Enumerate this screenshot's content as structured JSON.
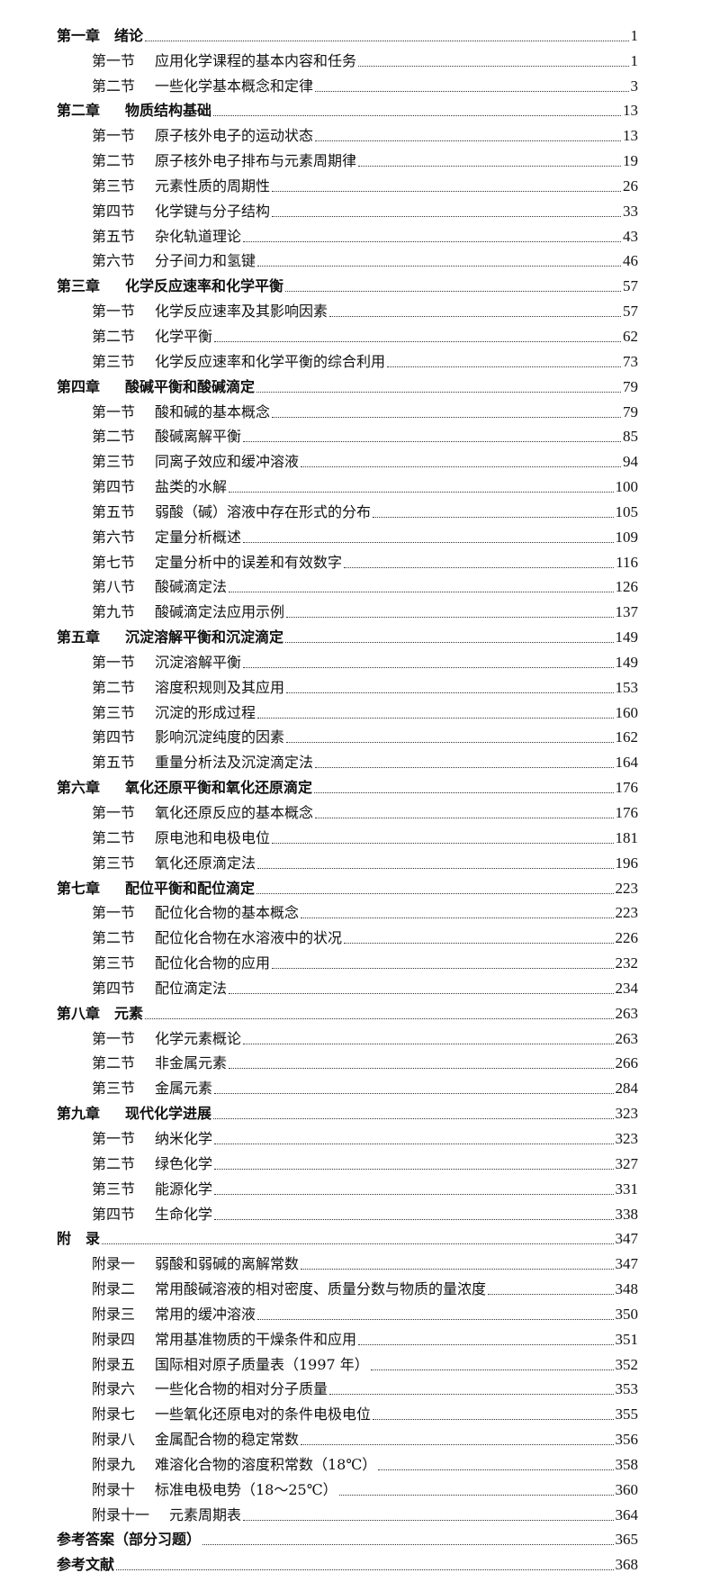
{
  "entries": [
    {
      "type": "chap",
      "label": "第一章　绪",
      "title": "论",
      "page": "1"
    },
    {
      "type": "sec",
      "label": "第一节",
      "title": "应用化学课程的基本内容和任务",
      "page": "1"
    },
    {
      "type": "sec",
      "label": "第二节",
      "title": "一些化学基本概念和定律",
      "page": "3"
    },
    {
      "type": "chap",
      "label": "第二章",
      "title": "物质结构基础",
      "page": "13"
    },
    {
      "type": "sec",
      "label": "第一节",
      "title": "原子核外电子的运动状态",
      "page": "13"
    },
    {
      "type": "sec",
      "label": "第二节",
      "title": "原子核外电子排布与元素周期律",
      "page": "19"
    },
    {
      "type": "sec",
      "label": "第三节",
      "title": "元素性质的周期性",
      "page": "26"
    },
    {
      "type": "sec",
      "label": "第四节",
      "title": "化学键与分子结构",
      "page": "33"
    },
    {
      "type": "sec",
      "label": "第五节",
      "title": "杂化轨道理论",
      "page": "43"
    },
    {
      "type": "sec",
      "label": "第六节",
      "title": "分子间力和氢键",
      "page": "46"
    },
    {
      "type": "chap",
      "label": "第三章",
      "title": "化学反应速率和化学平衡",
      "page": "57"
    },
    {
      "type": "sec",
      "label": "第一节",
      "title": "化学反应速率及其影响因素",
      "page": "57"
    },
    {
      "type": "sec",
      "label": "第二节",
      "title": "化学平衡",
      "page": "62"
    },
    {
      "type": "sec",
      "label": "第三节",
      "title": "化学反应速率和化学平衡的综合利用",
      "page": "73"
    },
    {
      "type": "chap",
      "label": "第四章",
      "title": "酸碱平衡和酸碱滴定",
      "page": "79"
    },
    {
      "type": "sec",
      "label": "第一节",
      "title": "酸和碱的基本概念",
      "page": "79"
    },
    {
      "type": "sec",
      "label": "第二节",
      "title": "酸碱离解平衡",
      "page": "85"
    },
    {
      "type": "sec",
      "label": "第三节",
      "title": "同离子效应和缓冲溶液",
      "page": "94"
    },
    {
      "type": "sec",
      "label": "第四节",
      "title": "盐类的水解",
      "page": "100"
    },
    {
      "type": "sec",
      "label": "第五节",
      "title": "弱酸（碱）溶液中存在形式的分布",
      "page": "105"
    },
    {
      "type": "sec",
      "label": "第六节",
      "title": "定量分析概述",
      "page": "109"
    },
    {
      "type": "sec",
      "label": "第七节",
      "title": "定量分析中的误差和有效数字",
      "page": "116"
    },
    {
      "type": "sec",
      "label": "第八节",
      "title": "酸碱滴定法",
      "page": "126"
    },
    {
      "type": "sec",
      "label": "第九节",
      "title": "酸碱滴定法应用示例",
      "page": "137"
    },
    {
      "type": "chap",
      "label": "第五章",
      "title": "沉淀溶解平衡和沉淀滴定",
      "page": "149"
    },
    {
      "type": "sec",
      "label": "第一节",
      "title": "沉淀溶解平衡",
      "page": "149"
    },
    {
      "type": "sec",
      "label": "第二节",
      "title": "溶度积规则及其应用",
      "page": "153"
    },
    {
      "type": "sec",
      "label": "第三节",
      "title": "沉淀的形成过程",
      "page": "160"
    },
    {
      "type": "sec",
      "label": "第四节",
      "title": "影响沉淀纯度的因素",
      "page": "162"
    },
    {
      "type": "sec",
      "label": "第五节",
      "title": "重量分析法及沉淀滴定法",
      "page": "164"
    },
    {
      "type": "chap",
      "label": "第六章",
      "title": "氧化还原平衡和氧化还原滴定",
      "page": "176"
    },
    {
      "type": "sec",
      "label": "第一节",
      "title": "氧化还原反应的基本概念",
      "page": "176"
    },
    {
      "type": "sec",
      "label": "第二节",
      "title": "原电池和电极电位",
      "page": "181"
    },
    {
      "type": "sec",
      "label": "第三节",
      "title": "氧化还原滴定法",
      "page": "196"
    },
    {
      "type": "chap",
      "label": "第七章",
      "title": "配位平衡和配位滴定",
      "page": "223"
    },
    {
      "type": "sec",
      "label": "第一节",
      "title": "配位化合物的基本概念",
      "page": "223"
    },
    {
      "type": "sec",
      "label": "第二节",
      "title": "配位化合物在水溶液中的状况",
      "page": "226"
    },
    {
      "type": "sec",
      "label": "第三节",
      "title": "配位化合物的应用",
      "page": "232"
    },
    {
      "type": "sec",
      "label": "第四节",
      "title": "配位滴定法",
      "page": "234"
    },
    {
      "type": "chap",
      "label": "第八章　元",
      "title": "素",
      "page": "263"
    },
    {
      "type": "sec",
      "label": "第一节",
      "title": "化学元素概论",
      "page": "263"
    },
    {
      "type": "sec",
      "label": "第二节",
      "title": "非金属元素",
      "page": "266"
    },
    {
      "type": "sec",
      "label": "第三节",
      "title": "金属元素",
      "page": "284"
    },
    {
      "type": "chap",
      "label": "第九章",
      "title": "现代化学进展",
      "page": "323"
    },
    {
      "type": "sec",
      "label": "第一节",
      "title": "纳米化学",
      "page": "323"
    },
    {
      "type": "sec",
      "label": "第二节",
      "title": "绿色化学",
      "page": "327"
    },
    {
      "type": "sec",
      "label": "第三节",
      "title": "能源化学",
      "page": "331"
    },
    {
      "type": "sec",
      "label": "第四节",
      "title": "生命化学",
      "page": "338"
    },
    {
      "type": "chap",
      "label": "附　录",
      "title": "",
      "page": "347"
    },
    {
      "type": "sec",
      "label": "附录一",
      "title": "弱酸和弱碱的离解常数",
      "page": "347"
    },
    {
      "type": "sec",
      "label": "附录二",
      "title": "常用酸碱溶液的相对密度、质量分数与物质的量浓度",
      "page": "348"
    },
    {
      "type": "sec",
      "label": "附录三",
      "title": "常用的缓冲溶液",
      "page": "350"
    },
    {
      "type": "sec",
      "label": "附录四",
      "title": "常用基准物质的干燥条件和应用",
      "page": "351"
    },
    {
      "type": "sec",
      "label": "附录五",
      "title": "国际相对原子质量表（1997 年）",
      "page": "352"
    },
    {
      "type": "sec",
      "label": "附录六",
      "title": "一些化合物的相对分子质量",
      "page": "353"
    },
    {
      "type": "sec",
      "label": "附录七",
      "title": "一些氧化还原电对的条件电极电位",
      "page": "355"
    },
    {
      "type": "sec",
      "label": "附录八",
      "title": "金属配合物的稳定常数",
      "page": "356"
    },
    {
      "type": "sec",
      "label": "附录九",
      "title": "难溶化合物的溶度积常数（18℃）",
      "page": "358"
    },
    {
      "type": "sec",
      "label": "附录十",
      "title": "标准电极电势（18～25℃）",
      "page": "360"
    },
    {
      "type": "sec wide",
      "label": "附录十一",
      "title": "元素周期表",
      "page": "364"
    },
    {
      "type": "chap",
      "label": "参考答案（部分习题）",
      "title": "",
      "page": "365"
    },
    {
      "type": "chap",
      "label": "参考文献",
      "title": "",
      "page": "368"
    }
  ]
}
